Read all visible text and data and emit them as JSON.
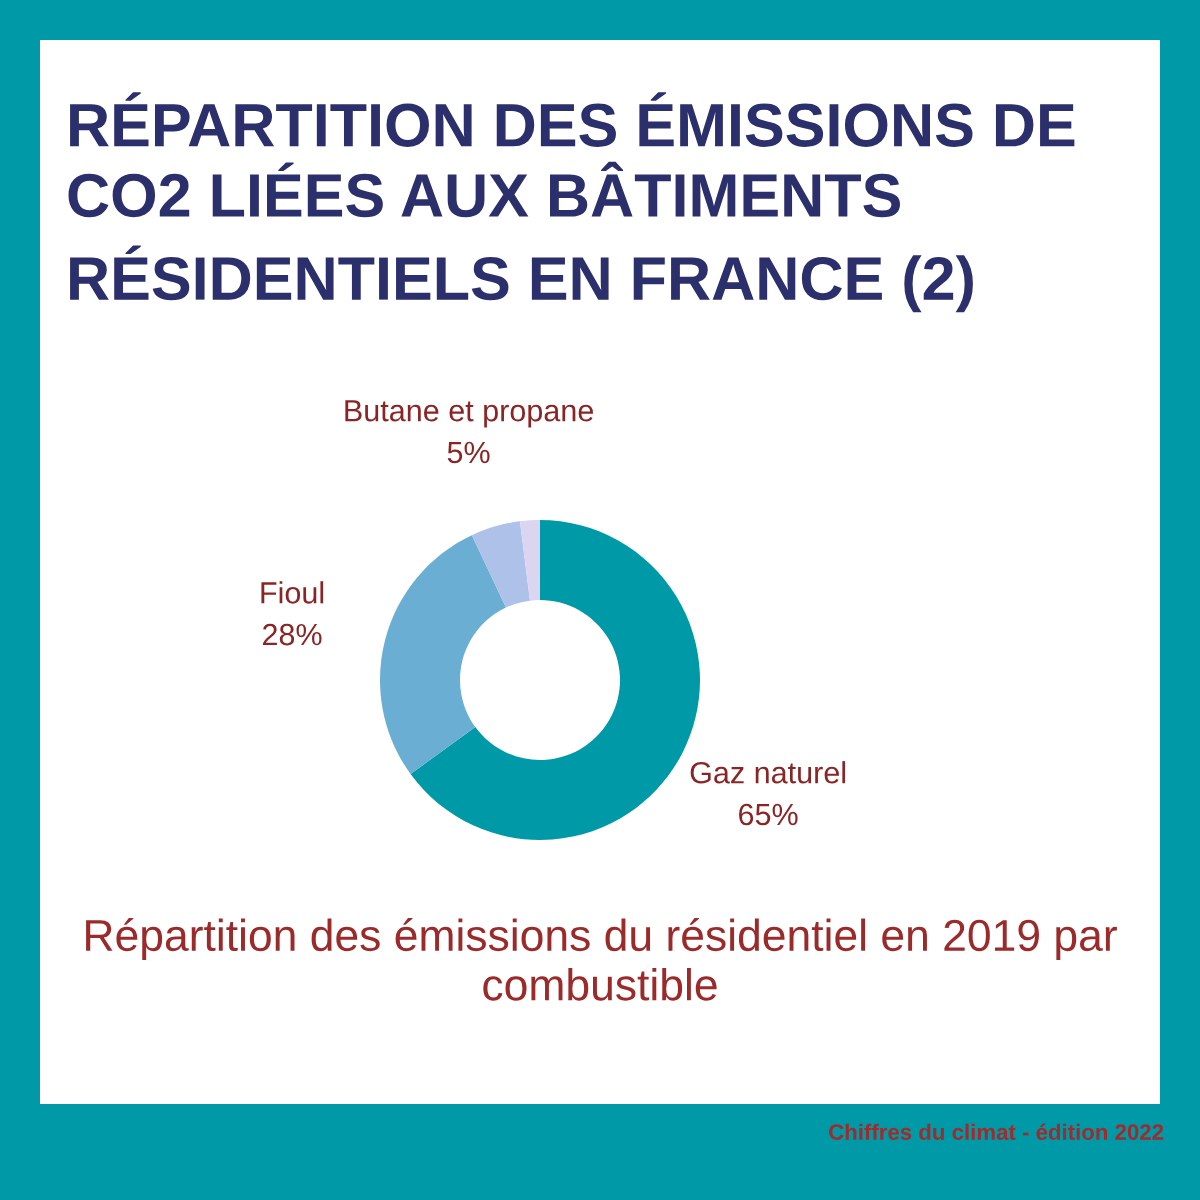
{
  "chart_data": {
    "type": "donut",
    "title": "RÉPARTITION DES ÉMISSIONS DE CO2 LIÉES AUX BÂTIMENTS RÉSIDENTIELS EN FRANCE (2)",
    "subtitle": "Répartition des émissions du résidentiel en 2019 par combustible",
    "categories": [
      "Gaz naturel",
      "Fioul",
      "Butane et propane",
      null
    ],
    "values": [
      65,
      28,
      5,
      2
    ],
    "value_labels": [
      "65%",
      "28%",
      "5%",
      null
    ],
    "colors": [
      "#0099a8",
      "#6aaed3",
      "#aec1e8",
      "#dcd5f2"
    ],
    "annotations": [
      "Chiffres du climat - édition 2022"
    ],
    "legend": false
  }
}
